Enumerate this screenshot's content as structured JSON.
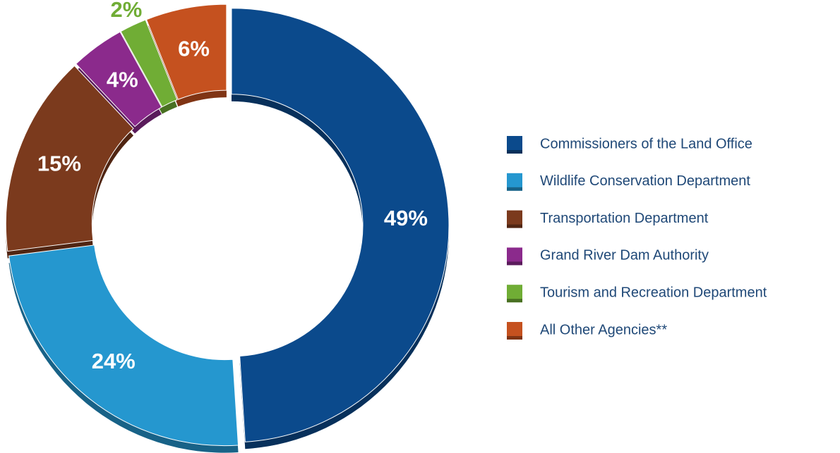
{
  "chart_data": {
    "type": "donut",
    "categories": [
      "Commissioners of the Land Office",
      "Wildlife Conservation Department",
      "Transportation Department",
      "Grand River Dam Authority",
      "Tourism and Recreation Department",
      "All Other Agencies**"
    ],
    "values": [
      49,
      24,
      15,
      4,
      2,
      6
    ],
    "value_labels": [
      "49%",
      "24%",
      "15%",
      "4%",
      "2%",
      "6%"
    ],
    "colors": [
      "#0b4a8c",
      "#2597cf",
      "#7b3a1d",
      "#8b2a8c",
      "#70ad35",
      "#c5511f"
    ],
    "legend": "right"
  }
}
